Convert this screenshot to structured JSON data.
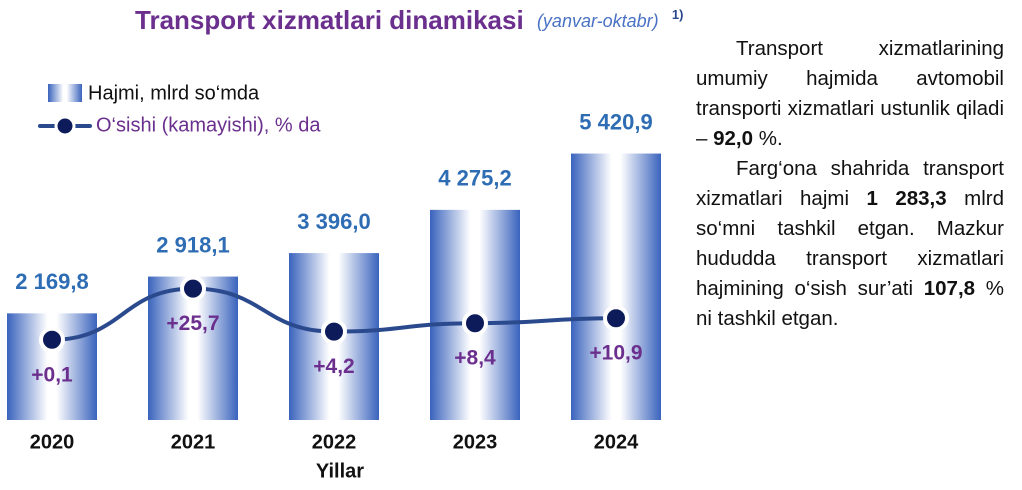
{
  "chart_data": {
    "type": "bar-line",
    "title": "Transport xizmatlari dinamikasi",
    "subtitle": "(yanvar-oktabr)",
    "footnote_mark": "1)",
    "x_label": "Yillar",
    "categories": [
      "2020",
      "2021",
      "2022",
      "2023",
      "2024"
    ],
    "ylim": [
      0,
      5900
    ],
    "y2lim": [
      -40,
      105
    ],
    "series": [
      {
        "name": "Hajmi, mlrd so‘mda",
        "color": "#3a63bd",
        "values": [
          2169.8,
          2918.1,
          3396.0,
          4275.2,
          5420.9
        ],
        "value_labels": [
          "2 169,8",
          "2 918,1",
          "3 396,0",
          "4 275,2",
          "5 420,9"
        ]
      },
      {
        "name": "O‘sishi (kamayishi), % da",
        "color": "#2b4a8e",
        "axis": "y2",
        "values": [
          0.1,
          25.7,
          4.2,
          8.4,
          10.9
        ],
        "value_labels": [
          "+0,1",
          "+25,7",
          "+4,2",
          "+8,4",
          "+10,9"
        ]
      }
    ]
  },
  "text": {
    "paragraphs": [
      [
        "Transport xizmatlarining umumiy hajmida avtomobil transporti xizmatlari ustunlik qiladi – ",
        "92,0",
        " %."
      ],
      [
        "Farg‘ona shahrida transport xizmatlari hajmi ",
        "1 283,3",
        " mlrd so‘mni tashkil etgan. Mazkur hududda transport xizmatlari hajmining o‘sish sur’ati ",
        "107,8",
        " % ni tashkil etgan."
      ]
    ]
  }
}
